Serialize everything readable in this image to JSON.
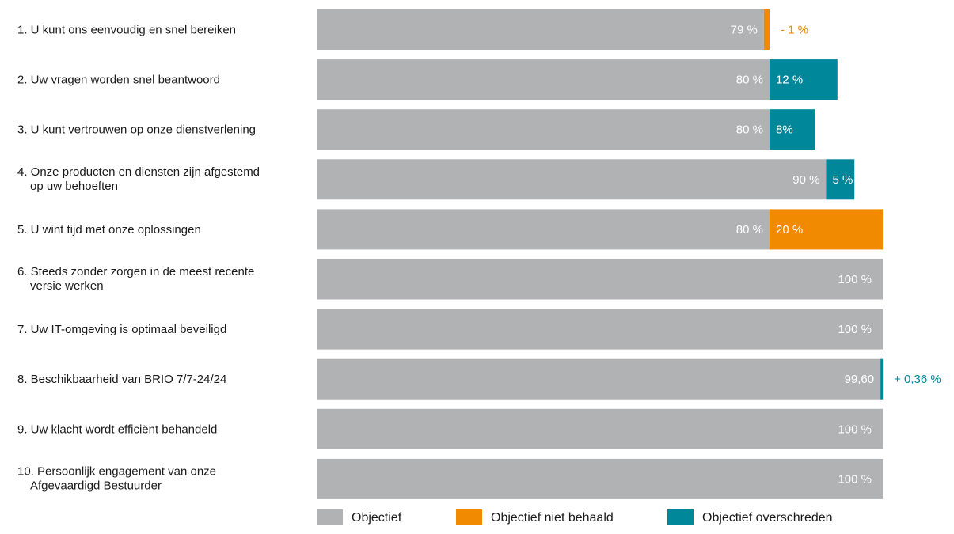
{
  "chart_data": {
    "type": "bar",
    "orientation": "horizontal",
    "stacked": true,
    "xlim": [
      0,
      100
    ],
    "grid": false,
    "legend_position": "bottom",
    "colors": {
      "objectief": "#b1b2b4",
      "niet_behaald": "#f28a00",
      "overschreden": "#00879a"
    },
    "categories": [
      {
        "label": [
          "1. U kunt ons eenvoudig en snel bereiken"
        ],
        "base": 79,
        "base_label": "79 %",
        "delta": 1,
        "delta_type": "niet_behaald",
        "delta_label": "- 1 %",
        "delta_label_pos": "outside"
      },
      {
        "label": [
          "2. Uw vragen worden snel beantwoord"
        ],
        "base": 80,
        "base_label": "80 %",
        "delta": 12,
        "delta_type": "overschreden",
        "delta_label": "12 %",
        "delta_label_pos": "inside"
      },
      {
        "label": [
          "3. U kunt vertrouwen op onze dienstverlening"
        ],
        "base": 80,
        "base_label": "80 %",
        "delta": 8,
        "delta_type": "overschreden",
        "delta_label": "8%",
        "delta_label_pos": "inside"
      },
      {
        "label": [
          "4. Onze producten en diensten zijn afgestemd",
          "op uw behoeften"
        ],
        "base": 90,
        "base_label": "90 %",
        "delta": 5,
        "delta_type": "overschreden",
        "delta_label": "5 %",
        "delta_label_pos": "inside"
      },
      {
        "label": [
          "5. U wint tijd met onze oplossingen"
        ],
        "base": 80,
        "base_label": "80 %",
        "delta": 20,
        "delta_type": "niet_behaald",
        "delta_label": "20 %",
        "delta_label_pos": "inside"
      },
      {
        "label": [
          "6. Steeds zonder zorgen in de meest recente",
          "versie werken"
        ],
        "base": 100,
        "base_label": "100 %",
        "delta": 0,
        "delta_type": null,
        "delta_label": "",
        "delta_label_pos": null
      },
      {
        "label": [
          "7. Uw IT-omgeving is optimaal beveiligd"
        ],
        "base": 100,
        "base_label": "100 %",
        "delta": 0,
        "delta_type": null,
        "delta_label": "",
        "delta_label_pos": null
      },
      {
        "label": [
          "8. Beschikbaarheid van BRIO 7/7-24/24"
        ],
        "base": 99.6,
        "base_label": "99,60",
        "delta": 0.36,
        "delta_type": "overschreden",
        "delta_label": "+ 0,36 %",
        "delta_label_pos": "outside"
      },
      {
        "label": [
          "9. Uw klacht wordt efficiënt behandeld"
        ],
        "base": 100,
        "base_label": "100 %",
        "delta": 0,
        "delta_type": null,
        "delta_label": "",
        "delta_label_pos": null
      },
      {
        "label": [
          "10. Persoonlijk engagement van onze",
          "Afgevaardigd Bestuurder"
        ],
        "base": 100,
        "base_label": "100 %",
        "delta": 0,
        "delta_type": null,
        "delta_label": "",
        "delta_label_pos": null
      }
    ],
    "legend": [
      {
        "key": "objectief",
        "label": "Objectief"
      },
      {
        "key": "niet_behaald",
        "label": "Objectief niet behaald"
      },
      {
        "key": "overschreden",
        "label": "Objectief overschreden"
      }
    ]
  }
}
